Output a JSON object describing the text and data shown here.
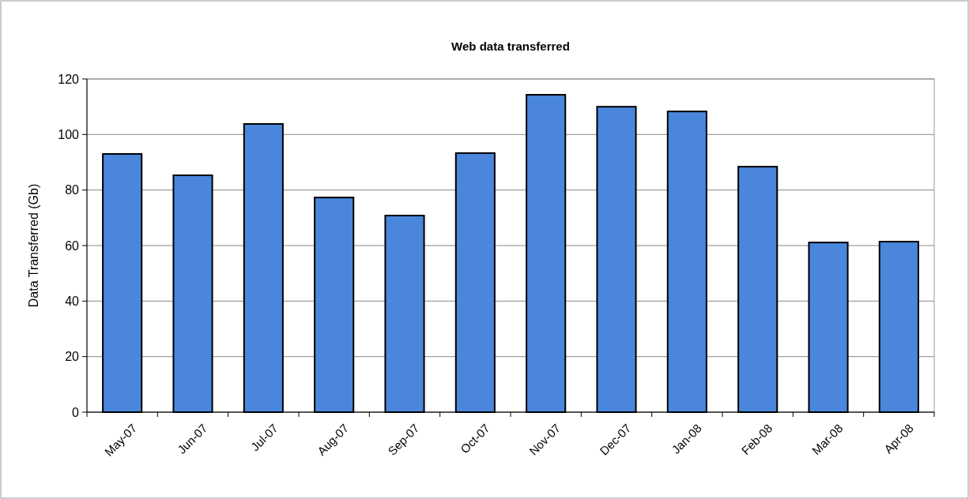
{
  "chart_data": {
    "type": "bar",
    "title": "Web data transferred",
    "ylabel": "Data Transferred (Gb)",
    "categories": [
      "May-07",
      "Jun-07",
      "Jul-07",
      "Aug-07",
      "Sep-07",
      "Oct-07",
      "Nov-07",
      "Dec-07",
      "Jan-08",
      "Feb-08",
      "Mar-08",
      "Apr-08"
    ],
    "values": [
      93,
      85.3,
      103.8,
      77.3,
      70.8,
      93.3,
      114.3,
      110,
      108.3,
      88.4,
      61.1,
      61.4
    ],
    "color": "#4a86dc",
    "ylim": [
      0,
      120
    ],
    "yticks": [
      0,
      20,
      40,
      60,
      80,
      100,
      120
    ],
    "grid": "y"
  }
}
